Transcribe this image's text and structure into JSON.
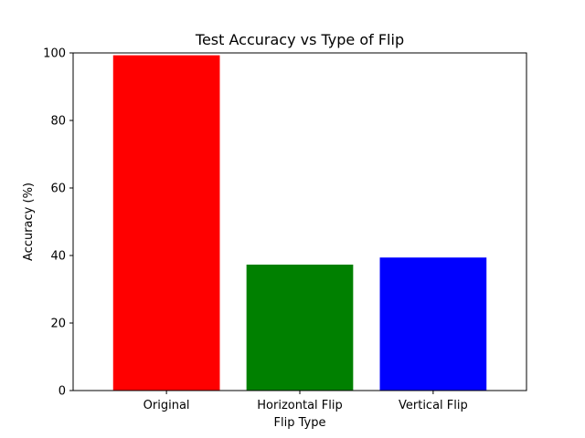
{
  "chart_data": {
    "type": "bar",
    "title": "Test Accuracy vs Type of Flip",
    "xlabel": "Flip Type",
    "ylabel": "Accuracy (%)",
    "categories": [
      "Original",
      "Horizontal Flip",
      "Vertical Flip"
    ],
    "values": [
      99.3,
      37.3,
      39.4
    ],
    "colors": [
      "#ff0000",
      "#008000",
      "#0000ff"
    ],
    "ylim": [
      0,
      100
    ],
    "yticks": [
      0,
      20,
      40,
      60,
      80,
      100
    ],
    "grid": false,
    "legend": "none"
  }
}
